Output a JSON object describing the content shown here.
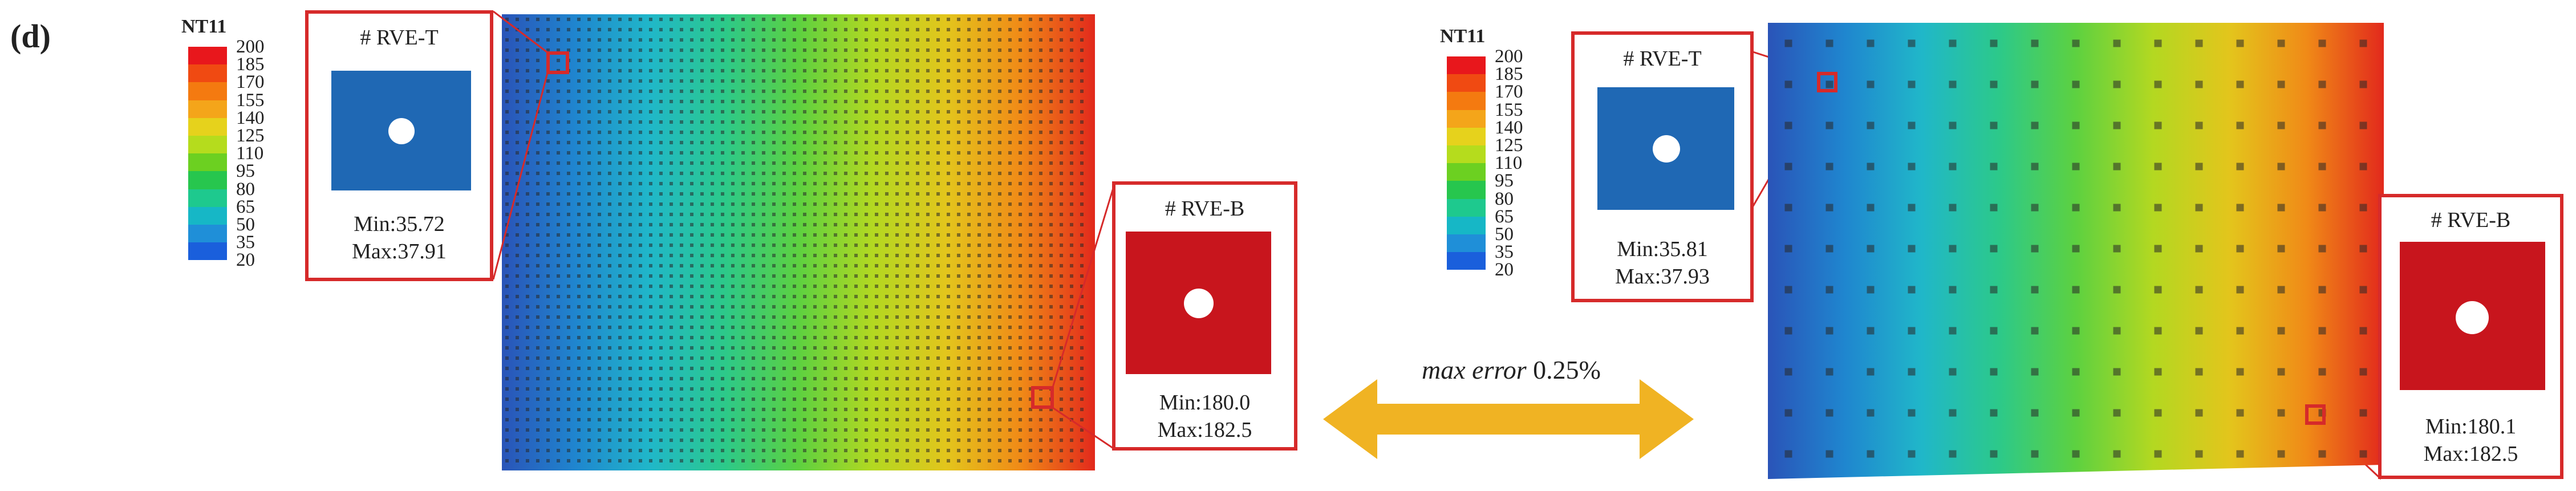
{
  "panel_label": "(d)",
  "legend": {
    "title": "NT11",
    "ticks": [
      "200",
      "185",
      "170",
      "155",
      "140",
      "125",
      "110",
      "95",
      "80",
      "65",
      "50",
      "35",
      "20"
    ],
    "colors": [
      "#e8171c",
      "#f04a12",
      "#f47a10",
      "#f4a51a",
      "#e6d21c",
      "#b5dc1d",
      "#6cd021",
      "#27c64e",
      "#1ec98e",
      "#16b7c6",
      "#1f8fd8",
      "#1a5fdc",
      "#1527c8"
    ]
  },
  "left": {
    "rve_t": {
      "name": "# RVE-T",
      "min": "Min:35.72",
      "max": "Max:37.91",
      "color": "#1f68b4"
    },
    "rve_b": {
      "name": "# RVE-B",
      "min": "Min:180.0",
      "max": "Max:182.5",
      "color": "#c8151d"
    }
  },
  "right": {
    "rve_t": {
      "name": "# RVE-T",
      "min": "Min:35.81",
      "max": "Max:37.93",
      "color": "#1f68b4"
    },
    "rve_b": {
      "name": "# RVE-B",
      "min": "Min:180.1",
      "max": "Max:182.5",
      "color": "#c8151d"
    }
  },
  "comparison": {
    "label_italic": "max error",
    "label_value": "0.25%",
    "arrow_color": "#f0b323"
  },
  "gradient": [
    "#2a54b8",
    "#1f86cf",
    "#20b7c9",
    "#2cc98a",
    "#5dd140",
    "#b3d821",
    "#e3c51c",
    "#f08a17",
    "#e2291c"
  ],
  "border_color": "#d62a2a"
}
